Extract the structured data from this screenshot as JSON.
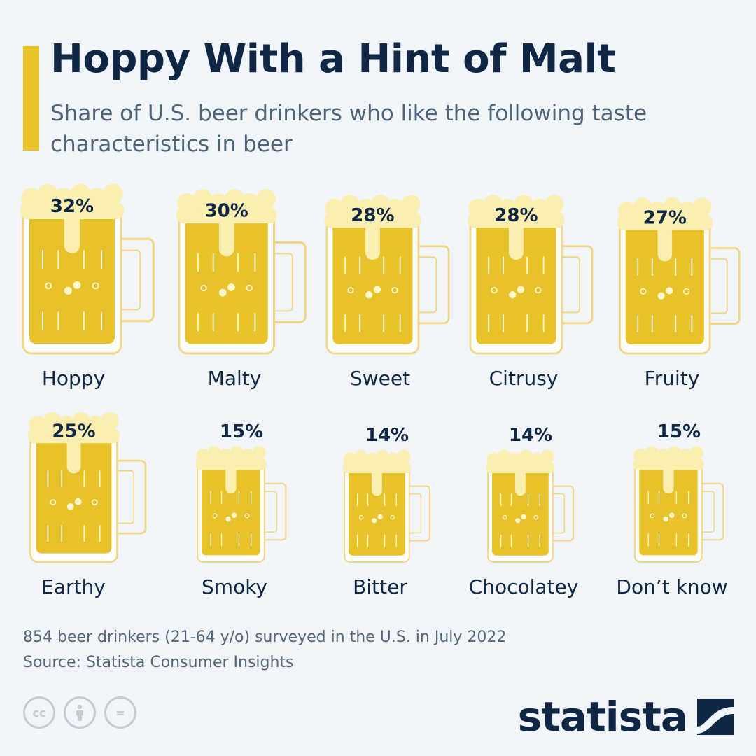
{
  "title": "Hoppy With a Hint of Malt",
  "subtitle": "Share of U.S. beer drinkers who like the following taste characteristics in beer",
  "chart_data": {
    "type": "bar",
    "unit": "%",
    "categories": [
      "Hoppy",
      "Malty",
      "Sweet",
      "Citrusy",
      "Fruity",
      "Earthy",
      "Smoky",
      "Bitter",
      "Chocolatey",
      "Don’t know"
    ],
    "values": [
      32,
      30,
      28,
      28,
      27,
      25,
      15,
      14,
      14,
      15
    ],
    "value_labels": [
      "32%",
      "30%",
      "28%",
      "28%",
      "27%",
      "25%",
      "15%",
      "14%",
      "14%",
      "15%"
    ],
    "colors": {
      "beer": "#e8c22a",
      "foam": "#faeeb0",
      "glass": "#f1d684",
      "text": "#0f2744"
    }
  },
  "footnote": {
    "line1": "854 beer drinkers (21-64 y/o) surveyed in the U.S. in July 2022",
    "line2": "Source: Statista Consumer Insights"
  },
  "license_icons": [
    "cc-icon",
    "attribution-icon",
    "no-derivatives-icon"
  ],
  "license_labels": [
    "cc",
    "",
    "="
  ],
  "brand": {
    "name": "statista",
    "color": "#0f2744"
  }
}
